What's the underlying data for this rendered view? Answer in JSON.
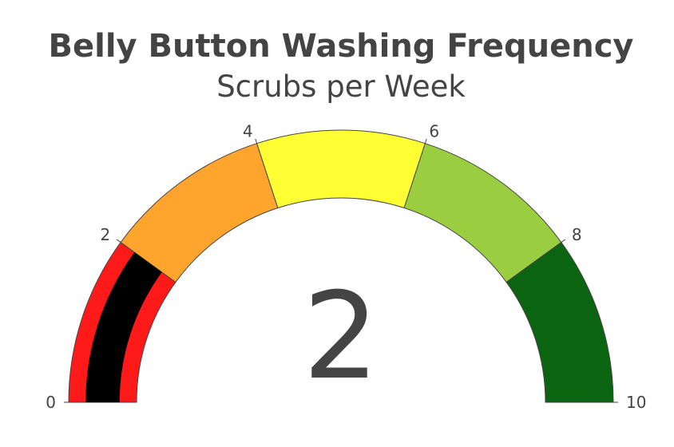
{
  "chart_data": {
    "type": "gauge",
    "title": "Belly Button Washing Frequency",
    "subtitle": "Scrubs per Week",
    "value": 2,
    "range": [
      0,
      10
    ],
    "tick_labels": [
      "0",
      "2",
      "4",
      "6",
      "8",
      "10"
    ],
    "tick_values": [
      0,
      2,
      4,
      6,
      8,
      10
    ],
    "steps": [
      {
        "range": [
          0,
          2
        ],
        "color": "#ff1a1a"
      },
      {
        "range": [
          2,
          4
        ],
        "color": "#ffa42c"
      },
      {
        "range": [
          4,
          6
        ],
        "color": "#ffff33"
      },
      {
        "range": [
          6,
          8
        ],
        "color": "#9acd40"
      },
      {
        "range": [
          8,
          10
        ],
        "color": "#0a6410"
      }
    ],
    "bar_color": "#000000",
    "value_label": "2"
  }
}
